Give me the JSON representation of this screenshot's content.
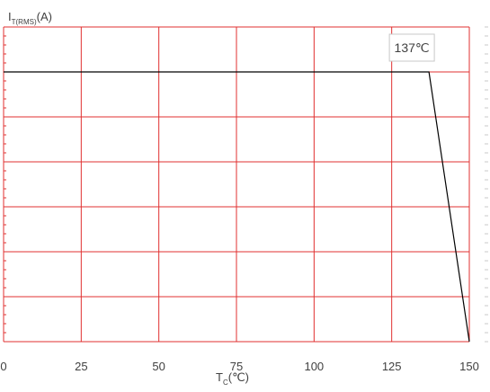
{
  "chart_data": {
    "type": "line",
    "ylabel_main": "I",
    "ylabel_sub": "T(RMS)",
    "ylabel_unit": "(A)",
    "xlabel_main": "T",
    "xlabel_sub": "C",
    "xlabel_unit": "(℃)",
    "xlim": [
      0,
      150
    ],
    "ylim": [
      0,
      7
    ],
    "x_ticks": [
      0,
      25,
      50,
      75,
      100,
      125,
      150
    ],
    "x_tick_labels": [
      "0",
      "25",
      "50",
      "75",
      "100",
      "125",
      "150"
    ],
    "y_gridlines": [
      1,
      2,
      3,
      4,
      5,
      6,
      7
    ],
    "grid": true,
    "series": [
      {
        "x": [
          0,
          137,
          150
        ],
        "y": [
          6,
          6,
          0
        ]
      }
    ],
    "annotations": [
      {
        "text": "137℃",
        "x": 137,
        "y": 6
      }
    ]
  },
  "colors": {
    "grid": "#e03030",
    "line": "#000000",
    "tick_text": "#404040",
    "annotation_border": "#c8c8c8",
    "right_dashes": "#c8c8c8"
  }
}
